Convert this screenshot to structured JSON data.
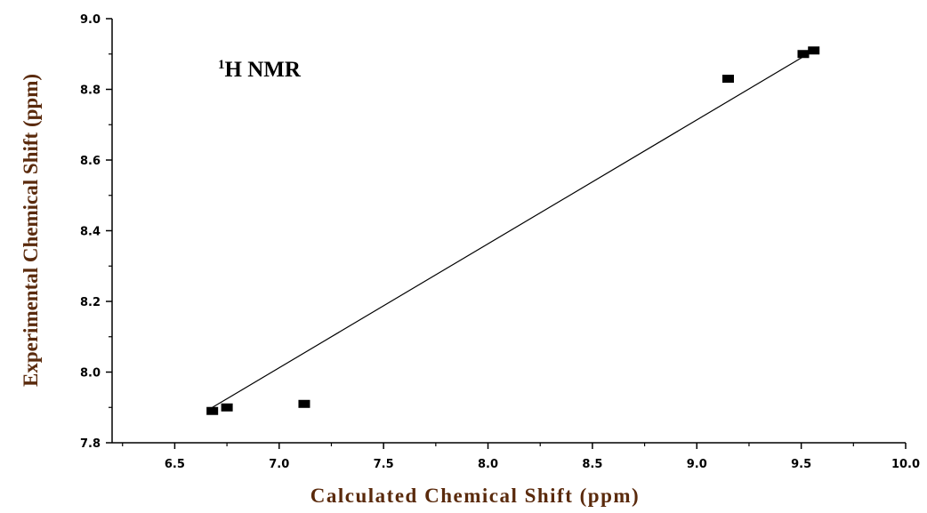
{
  "chart_data": {
    "type": "scatter",
    "xlabel": "Calculated Chemical Shift (ppm)",
    "ylabel": "Experimental Chemical Shift (ppm)",
    "annotation": {
      "superscript": "1",
      "text": "H NMR"
    },
    "xlim": [
      6.2,
      10.0
    ],
    "ylim": [
      7.8,
      9.0
    ],
    "x_ticks": [
      "6.5",
      "7.0",
      "7.5",
      "8.0",
      "8.5",
      "9.0",
      "9.5",
      "10.0"
    ],
    "y_ticks": [
      "7.8",
      "8.0",
      "8.2",
      "8.4",
      "8.6",
      "8.8",
      "9.0"
    ],
    "series": [
      {
        "x": [
          6.68,
          6.75,
          7.12,
          9.15,
          9.51,
          9.56
        ],
        "y": [
          7.89,
          7.9,
          7.91,
          8.83,
          8.9,
          8.91
        ]
      }
    ],
    "fit_line": {
      "x": [
        6.68,
        9.56
      ],
      "y": [
        7.9,
        8.91
      ]
    },
    "colors": {
      "points": "#000000",
      "axes": "#000000",
      "axis_title": "#5a2a0c"
    },
    "grid": false,
    "legend": "none"
  }
}
